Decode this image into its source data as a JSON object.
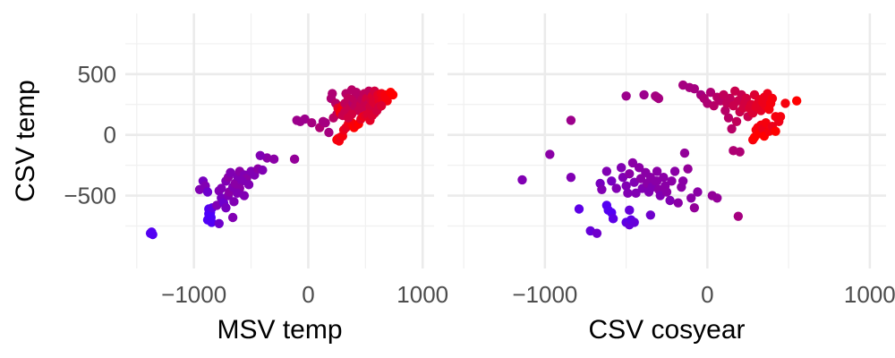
{
  "chart_data": [
    {
      "type": "scatter",
      "xlabel": "MSV temp",
      "ylabel": "CSV temp",
      "xlim": [
        -1600,
        1100
      ],
      "ylim": [
        -1100,
        1000
      ],
      "xticks": [
        -1000,
        0,
        1000
      ],
      "yticks": [
        -500,
        0,
        500
      ],
      "x_tick_labels": [
        "−1000",
        "0",
        "1000"
      ],
      "y_tick_labels": [
        "−500",
        "0",
        "500"
      ],
      "grid": true,
      "points": [
        [
          -1370,
          -800,
          0.05
        ],
        [
          -1360,
          -820,
          0.05
        ],
        [
          -1380,
          -810,
          0.05
        ],
        [
          -870,
          -650,
          0.02
        ],
        [
          -860,
          -630,
          0.02
        ],
        [
          -850,
          -680,
          0.03
        ],
        [
          -880,
          -700,
          0.03
        ],
        [
          -845,
          -720,
          0.04
        ],
        [
          -870,
          -610,
          0.05
        ],
        [
          -860,
          -660,
          0.02
        ],
        [
          -855,
          -640,
          0.02
        ],
        [
          -840,
          -600,
          0.1
        ],
        [
          -920,
          -380,
          0.25
        ],
        [
          -900,
          -420,
          0.3
        ],
        [
          -950,
          -450,
          0.3
        ],
        [
          -880,
          -470,
          0.2
        ],
        [
          -780,
          -460,
          0.3
        ],
        [
          -760,
          -520,
          0.25
        ],
        [
          -800,
          -580,
          0.3
        ],
        [
          -740,
          -560,
          0.2
        ],
        [
          -700,
          -500,
          0.3
        ],
        [
          -690,
          -470,
          0.35
        ],
        [
          -660,
          -430,
          0.3
        ],
        [
          -640,
          -400,
          0.35
        ],
        [
          -720,
          -380,
          0.3
        ],
        [
          -700,
          -350,
          0.35
        ],
        [
          -680,
          -310,
          0.3
        ],
        [
          -620,
          -340,
          0.3
        ],
        [
          -600,
          -300,
          0.35
        ],
        [
          -560,
          -330,
          0.3
        ],
        [
          -540,
          -360,
          0.35
        ],
        [
          -520,
          -410,
          0.3
        ],
        [
          -580,
          -380,
          0.3
        ],
        [
          -600,
          -440,
          0.35
        ],
        [
          -620,
          -480,
          0.3
        ],
        [
          -560,
          -500,
          0.3
        ],
        [
          -500,
          -300,
          0.3
        ],
        [
          -470,
          -330,
          0.3
        ],
        [
          -440,
          -280,
          0.35
        ],
        [
          -400,
          -290,
          0.3
        ],
        [
          -360,
          -190,
          0.35
        ],
        [
          -300,
          -200,
          0.35
        ],
        [
          -420,
          -170,
          0.3
        ],
        [
          -650,
          -550,
          0.3
        ],
        [
          -720,
          -600,
          0.25
        ],
        [
          -780,
          -730,
          0.2
        ],
        [
          -660,
          -680,
          0.3
        ],
        [
          -760,
          -440,
          0.3
        ],
        [
          -120,
          -200,
          0.4
        ],
        [
          -100,
          120,
          0.45
        ],
        [
          -70,
          110,
          0.45
        ],
        [
          -30,
          130,
          0.45
        ],
        [
          30,
          100,
          0.5
        ],
        [
          100,
          60,
          0.55
        ],
        [
          130,
          110,
          0.5
        ],
        [
          180,
          20,
          0.5
        ],
        [
          150,
          100,
          0.5
        ],
        [
          220,
          140,
          0.6
        ],
        [
          250,
          170,
          0.65
        ],
        [
          270,
          210,
          0.7
        ],
        [
          200,
          300,
          0.55
        ],
        [
          210,
          340,
          0.55
        ],
        [
          240,
          260,
          0.6
        ],
        [
          260,
          220,
          0.85
        ],
        [
          280,
          180,
          0.95
        ],
        [
          300,
          240,
          0.9
        ],
        [
          290,
          200,
          0.95
        ],
        [
          320,
          260,
          0.65
        ],
        [
          330,
          340,
          0.6
        ],
        [
          350,
          300,
          0.65
        ],
        [
          360,
          220,
          0.7
        ],
        [
          380,
          370,
          0.6
        ],
        [
          390,
          260,
          0.6
        ],
        [
          400,
          300,
          0.65
        ],
        [
          410,
          230,
          0.65
        ],
        [
          420,
          350,
          0.6
        ],
        [
          430,
          280,
          0.65
        ],
        [
          440,
          200,
          0.7
        ],
        [
          450,
          320,
          0.6
        ],
        [
          460,
          250,
          0.7
        ],
        [
          470,
          290,
          0.65
        ],
        [
          480,
          230,
          0.7
        ],
        [
          490,
          340,
          0.65
        ],
        [
          500,
          270,
          0.7
        ],
        [
          510,
          300,
          0.75
        ],
        [
          520,
          250,
          0.7
        ],
        [
          530,
          360,
          0.65
        ],
        [
          540,
          230,
          0.75
        ],
        [
          550,
          290,
          0.75
        ],
        [
          560,
          320,
          0.8
        ],
        [
          570,
          270,
          0.8
        ],
        [
          580,
          360,
          0.75
        ],
        [
          590,
          250,
          0.8
        ],
        [
          600,
          300,
          0.8
        ],
        [
          610,
          330,
          0.85
        ],
        [
          620,
          280,
          0.85
        ],
        [
          630,
          260,
          0.85
        ],
        [
          640,
          340,
          0.9
        ],
        [
          650,
          290,
          0.9
        ],
        [
          660,
          310,
          0.9
        ],
        [
          670,
          330,
          0.95
        ],
        [
          680,
          300,
          0.95
        ],
        [
          690,
          280,
          0.95
        ],
        [
          700,
          320,
          0.95
        ],
        [
          720,
          350,
          1.0
        ],
        [
          740,
          330,
          1.0
        ],
        [
          250,
          -40,
          0.95
        ],
        [
          260,
          -30,
          1.0
        ],
        [
          270,
          -50,
          0.95
        ],
        [
          280,
          -20,
          0.9
        ],
        [
          300,
          -10,
          0.95
        ],
        [
          310,
          40,
          0.9
        ],
        [
          330,
          60,
          0.85
        ],
        [
          350,
          90,
          0.9
        ],
        [
          380,
          100,
          0.95
        ],
        [
          400,
          60,
          1.0
        ],
        [
          420,
          80,
          0.95
        ],
        [
          440,
          90,
          1.0
        ],
        [
          460,
          130,
          0.85
        ],
        [
          480,
          150,
          0.9
        ],
        [
          500,
          160,
          0.85
        ],
        [
          520,
          170,
          0.8
        ],
        [
          540,
          120,
          0.85
        ],
        [
          560,
          160,
          0.8
        ],
        [
          580,
          180,
          0.8
        ],
        [
          600,
          200,
          0.75
        ],
        [
          620,
          230,
          0.75
        ],
        [
          640,
          240,
          0.8
        ],
        [
          300,
          160,
          0.7
        ],
        [
          320,
          190,
          0.7
        ],
        [
          350,
          140,
          0.75
        ],
        [
          380,
          170,
          0.75
        ]
      ]
    },
    {
      "type": "scatter",
      "xlabel": "CSV cosyear",
      "ylabel": "",
      "xlim": [
        -1600,
        1100
      ],
      "ylim": [
        -1100,
        1000
      ],
      "xticks": [
        -1000,
        0,
        1000
      ],
      "yticks": [
        -500,
        0,
        500
      ],
      "x_tick_labels": [
        "−1000",
        "0",
        "1000"
      ],
      "grid": true,
      "points": [
        [
          -1140,
          -370,
          0.3
        ],
        [
          -970,
          -160,
          0.35
        ],
        [
          -840,
          120,
          0.45
        ],
        [
          -840,
          -350,
          0.3
        ],
        [
          -790,
          -610,
          0.1
        ],
        [
          -720,
          -790,
          0.15
        ],
        [
          -680,
          -810,
          0.2
        ],
        [
          -620,
          -580,
          0.05
        ],
        [
          -610,
          -620,
          0.05
        ],
        [
          -590,
          -640,
          0.05
        ],
        [
          -580,
          -690,
          0.1
        ],
        [
          -500,
          -720,
          0.1
        ],
        [
          -480,
          -740,
          0.15
        ],
        [
          -470,
          -700,
          0.1
        ],
        [
          -450,
          -720,
          0.15
        ],
        [
          -350,
          -660,
          0.2
        ],
        [
          -480,
          -620,
          0.15
        ],
        [
          -660,
          -400,
          0.25
        ],
        [
          -650,
          -450,
          0.3
        ],
        [
          -620,
          -300,
          0.3
        ],
        [
          -590,
          -380,
          0.25
        ],
        [
          -560,
          -440,
          0.3
        ],
        [
          -530,
          -270,
          0.3
        ],
        [
          -520,
          -350,
          0.3
        ],
        [
          -500,
          -420,
          0.3
        ],
        [
          -490,
          -480,
          0.3
        ],
        [
          -480,
          -320,
          0.35
        ],
        [
          -460,
          -230,
          0.35
        ],
        [
          -450,
          -390,
          0.3
        ],
        [
          -440,
          -480,
          0.3
        ],
        [
          -420,
          -270,
          0.35
        ],
        [
          -410,
          -360,
          0.35
        ],
        [
          -400,
          -440,
          0.3
        ],
        [
          -380,
          -310,
          0.35
        ],
        [
          -370,
          -400,
          0.35
        ],
        [
          -360,
          -470,
          0.3
        ],
        [
          -350,
          -350,
          0.35
        ],
        [
          -340,
          -430,
          0.3
        ],
        [
          -320,
          -380,
          0.35
        ],
        [
          -310,
          -300,
          0.35
        ],
        [
          -300,
          -450,
          0.35
        ],
        [
          -290,
          -500,
          0.3
        ],
        [
          -270,
          -350,
          0.35
        ],
        [
          -260,
          -420,
          0.35
        ],
        [
          -250,
          -470,
          0.35
        ],
        [
          -230,
          -540,
          0.3
        ],
        [
          -220,
          -380,
          0.35
        ],
        [
          -200,
          -300,
          0.35
        ],
        [
          -180,
          -560,
          0.35
        ],
        [
          -160,
          -430,
          0.35
        ],
        [
          -150,
          -380,
          0.35
        ],
        [
          -140,
          -150,
          0.4
        ],
        [
          -120,
          -280,
          0.4
        ],
        [
          -100,
          -520,
          0.35
        ],
        [
          -80,
          -600,
          0.4
        ],
        [
          -60,
          -470,
          0.35
        ],
        [
          -500,
          320,
          0.45
        ],
        [
          -390,
          330,
          0.45
        ],
        [
          -320,
          320,
          0.5
        ],
        [
          -300,
          300,
          0.5
        ],
        [
          -310,
          -380,
          0.35
        ],
        [
          30,
          -500,
          0.4
        ],
        [
          60,
          -520,
          0.4
        ],
        [
          160,
          -130,
          0.55
        ],
        [
          190,
          -670,
          0.5
        ],
        [
          200,
          -140,
          0.55
        ],
        [
          -310,
          310,
          0.5
        ],
        [
          -150,
          410,
          0.5
        ],
        [
          -110,
          390,
          0.5
        ],
        [
          -80,
          380,
          0.5
        ],
        [
          -40,
          330,
          0.5
        ],
        [
          -20,
          300,
          0.55
        ],
        [
          0,
          260,
          0.55
        ],
        [
          20,
          350,
          0.55
        ],
        [
          40,
          240,
          0.6
        ],
        [
          60,
          310,
          0.6
        ],
        [
          80,
          280,
          0.6
        ],
        [
          100,
          330,
          0.65
        ],
        [
          110,
          200,
          0.6
        ],
        [
          120,
          260,
          0.65
        ],
        [
          130,
          140,
          0.6
        ],
        [
          140,
          300,
          0.65
        ],
        [
          150,
          50,
          0.6
        ],
        [
          160,
          240,
          0.7
        ],
        [
          170,
          360,
          0.7
        ],
        [
          180,
          110,
          0.65
        ],
        [
          190,
          280,
          0.7
        ],
        [
          200,
          190,
          0.7
        ],
        [
          210,
          330,
          0.7
        ],
        [
          220,
          220,
          0.75
        ],
        [
          230,
          260,
          0.75
        ],
        [
          240,
          300,
          0.75
        ],
        [
          250,
          150,
          0.7
        ],
        [
          260,
          220,
          0.8
        ],
        [
          270,
          250,
          0.8
        ],
        [
          280,
          180,
          0.8
        ],
        [
          290,
          330,
          0.8
        ],
        [
          300,
          230,
          0.85
        ],
        [
          310,
          260,
          0.85
        ],
        [
          320,
          290,
          0.85
        ],
        [
          330,
          200,
          0.85
        ],
        [
          340,
          270,
          0.9
        ],
        [
          350,
          310,
          0.9
        ],
        [
          360,
          240,
          0.9
        ],
        [
          370,
          340,
          0.9
        ],
        [
          380,
          210,
          0.95
        ],
        [
          390,
          260,
          0.95
        ],
        [
          400,
          300,
          0.95
        ],
        [
          420,
          150,
          0.95
        ],
        [
          440,
          110,
          0.9
        ],
        [
          480,
          260,
          0.95
        ],
        [
          550,
          280,
          1.0
        ],
        [
          280,
          -40,
          0.95
        ],
        [
          290,
          -20,
          1.0
        ],
        [
          300,
          40,
          0.95
        ],
        [
          310,
          60,
          0.95
        ],
        [
          320,
          10,
          1.0
        ],
        [
          330,
          80,
          0.95
        ],
        [
          340,
          50,
          0.9
        ],
        [
          350,
          -10,
          1.0
        ],
        [
          360,
          100,
          0.95
        ],
        [
          380,
          30,
          0.95
        ],
        [
          400,
          70,
          0.9
        ],
        [
          420,
          30,
          1.0
        ],
        [
          450,
          150,
          0.95
        ]
      ]
    }
  ]
}
